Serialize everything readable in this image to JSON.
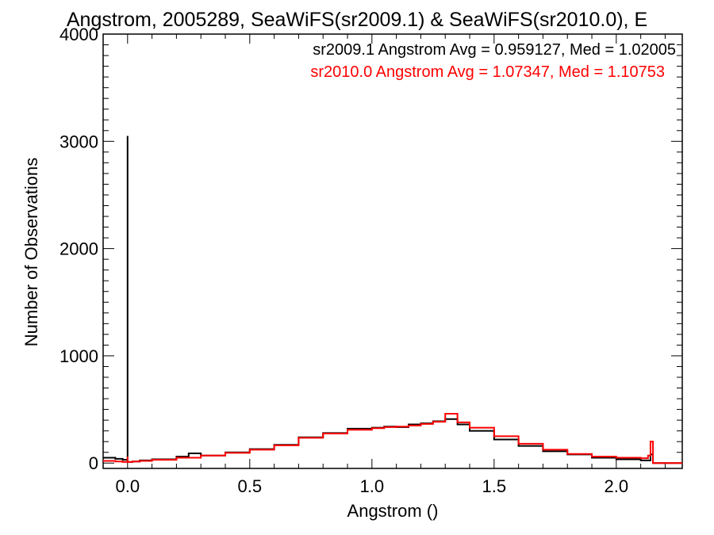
{
  "chart_data": {
    "type": "line",
    "title": "Angstrom, 2005289, SeaWiFS(sr2009.1) & SeaWiFS(sr2010.0), E",
    "xlabel": "Angstrom ()",
    "ylabel": "Number of Observations",
    "xlim": [
      -0.1,
      2.27
    ],
    "ylim": [
      -50,
      4000
    ],
    "xticks": [
      "0.0",
      "0.5",
      "1.0",
      "1.5",
      "2.0"
    ],
    "xtick_values": [
      0.0,
      0.5,
      1.0,
      1.5,
      2.0
    ],
    "yticks": [
      "0",
      "1000",
      "2000",
      "3000",
      "4000"
    ],
    "ytick_values": [
      0,
      1000,
      2000,
      3000,
      4000
    ],
    "grid": false,
    "legend_position": "top-right",
    "annotations": [
      {
        "text": "sr2009.1 Angstrom Avg = 0.959127, Med = 1.02005",
        "color": "#000000"
      },
      {
        "text": "sr2010.0 Angstrom Avg = 1.07347, Med = 1.10753",
        "color": "#ff0000"
      }
    ],
    "series": [
      {
        "name": "sr2009.1",
        "color": "#000000",
        "x": [
          -0.1,
          -0.05,
          -0.02,
          0.0,
          0.0,
          0.02,
          0.05,
          0.1,
          0.2,
          0.25,
          0.3,
          0.4,
          0.5,
          0.6,
          0.7,
          0.8,
          0.9,
          1.0,
          1.05,
          1.1,
          1.15,
          1.2,
          1.25,
          1.3,
          1.35,
          1.4,
          1.5,
          1.6,
          1.7,
          1.8,
          1.9,
          2.0,
          2.1,
          2.14,
          2.15,
          2.2,
          2.27
        ],
        "y": [
          50,
          40,
          30,
          3050,
          10,
          15,
          25,
          35,
          60,
          90,
          70,
          100,
          130,
          170,
          240,
          280,
          320,
          330,
          340,
          335,
          360,
          370,
          390,
          410,
          360,
          300,
          220,
          160,
          110,
          80,
          50,
          35,
          25,
          80,
          0,
          0,
          0
        ]
      },
      {
        "name": "sr2010.0",
        "color": "#ff0000",
        "x": [
          -0.1,
          -0.05,
          -0.02,
          0.0,
          0.0,
          0.02,
          0.05,
          0.1,
          0.2,
          0.3,
          0.4,
          0.5,
          0.6,
          0.7,
          0.8,
          0.9,
          1.0,
          1.05,
          1.1,
          1.15,
          1.2,
          1.25,
          1.3,
          1.35,
          1.4,
          1.5,
          1.6,
          1.7,
          1.8,
          1.9,
          2.0,
          2.1,
          2.13,
          2.14,
          2.15,
          2.2,
          2.27
        ],
        "y": [
          20,
          15,
          10,
          60,
          10,
          15,
          20,
          30,
          50,
          70,
          95,
          125,
          165,
          235,
          275,
          310,
          325,
          335,
          340,
          350,
          365,
          385,
          460,
          380,
          330,
          250,
          180,
          125,
          85,
          60,
          50,
          45,
          70,
          200,
          0,
          0,
          0
        ]
      }
    ]
  }
}
